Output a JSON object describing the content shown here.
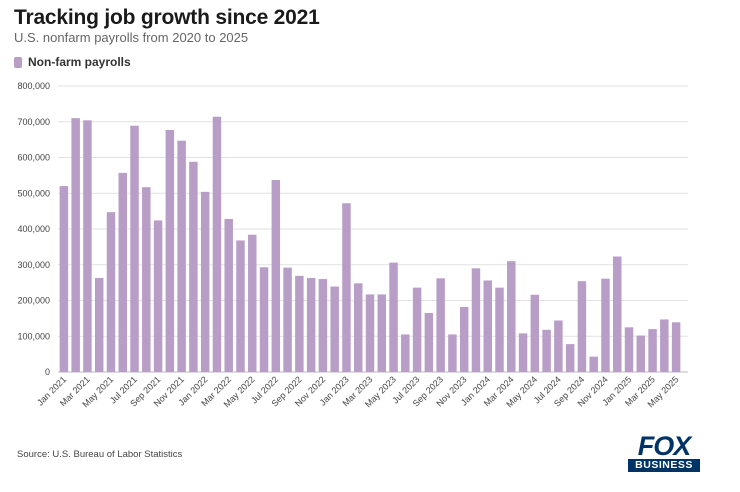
{
  "chart_data": {
    "type": "bar",
    "title": "Tracking job growth since 2021",
    "subtitle": "U.S. nonfarm payrolls from 2020 to 2025",
    "legend": "Non-farm payrolls",
    "legend_position": "top-left",
    "xlabel": "",
    "ylabel": "",
    "ylim": [
      0,
      800000
    ],
    "yticks": [
      0,
      100000,
      200000,
      300000,
      400000,
      500000,
      600000,
      700000,
      800000
    ],
    "ytick_labels": [
      "0",
      "100,000",
      "200,000",
      "300,000",
      "400,000",
      "500,000",
      "600,000",
      "700,000",
      "800,000"
    ],
    "grid": true,
    "categories": [
      "Jan 2021",
      "Feb 2021",
      "Mar 2021",
      "Apr 2021",
      "May 2021",
      "Jun 2021",
      "Jul 2021",
      "Aug 2021",
      "Sep 2021",
      "Oct 2021",
      "Nov 2021",
      "Dec 2021",
      "Jan 2022",
      "Feb 2022",
      "Mar 2022",
      "Apr 2022",
      "May 2022",
      "Jun 2022",
      "Jul 2022",
      "Aug 2022",
      "Sep 2022",
      "Oct 2022",
      "Nov 2022",
      "Dec 2022",
      "Jan 2023",
      "Feb 2023",
      "Mar 2023",
      "Apr 2023",
      "May 2023",
      "Jun 2023",
      "Jul 2023",
      "Aug 2023",
      "Sep 2023",
      "Oct 2023",
      "Nov 2023",
      "Dec 2023",
      "Jan 2024",
      "Feb 2024",
      "Mar 2024",
      "Apr 2024",
      "May 2024",
      "Jun 2024",
      "Jul 2024",
      "Aug 2024",
      "Sep 2024",
      "Oct 2024",
      "Nov 2024",
      "Dec 2024",
      "Jan 2025",
      "Feb 2025",
      "Mar 2025",
      "Apr 2025",
      "May 2025"
    ],
    "tick_labels": [
      "Jan 2021",
      "",
      "Mar 2021",
      "",
      "May 2021",
      "",
      "Jul 2021",
      "",
      "Sep 2021",
      "",
      "Nov 2021",
      "",
      "Jan 2022",
      "",
      "Mar 2022",
      "",
      "May 2022",
      "",
      "Jul 2022",
      "",
      "Sep 2022",
      "",
      "Nov 2022",
      "",
      "Jan 2023",
      "",
      "Mar 2023",
      "",
      "May 2023",
      "",
      "Jul 2023",
      "",
      "Sep 2023",
      "",
      "Nov 2023",
      "",
      "Jan 2024",
      "",
      "Mar 2024",
      "",
      "May 2024",
      "",
      "Jul 2024",
      "",
      "Sep 2024",
      "",
      "Nov 2024",
      "",
      "Jan 2025",
      "",
      "Mar 2025",
      "",
      "May 2025"
    ],
    "values": [
      520000,
      710000,
      704000,
      263000,
      447000,
      557000,
      689000,
      517000,
      424000,
      677000,
      647000,
      588000,
      504000,
      714000,
      428000,
      368000,
      384000,
      293000,
      537000,
      292000,
      269000,
      263000,
      260000,
      239000,
      472000,
      248000,
      217000,
      217000,
      306000,
      105000,
      236000,
      165000,
      262000,
      105000,
      182000,
      290000,
      256000,
      236000,
      310000,
      108000,
      216000,
      118000,
      144000,
      78000,
      254000,
      43000,
      261000,
      323000,
      125000,
      102000,
      120000,
      147000,
      139000
    ],
    "color": "#b89dc7"
  },
  "source": "Source: U.S. Bureau of Labor Statistics",
  "logo": {
    "top": "FOX",
    "bottom": "BUSINESS",
    "color": "#003366"
  }
}
